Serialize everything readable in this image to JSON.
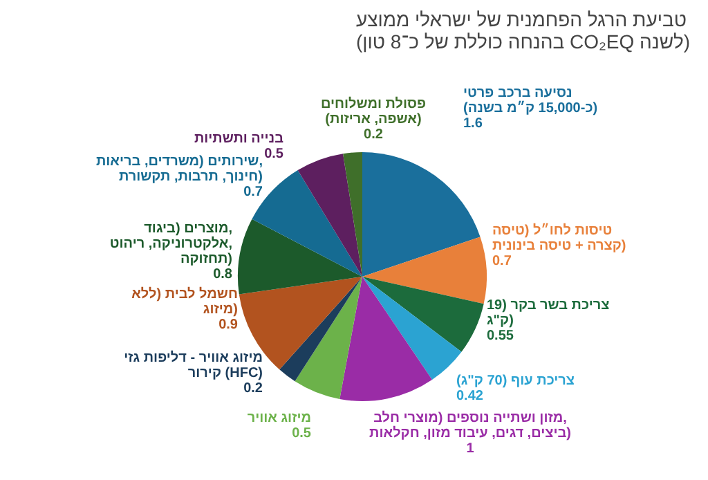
{
  "chart_data": {
    "type": "pie",
    "title": "טביעת הרגל הפחמנית של ישראלי ממוצע",
    "subtitle": "(בהנחה כוללת של כ־8 טון CO₂EQ לשנה)",
    "categories": [
      "נסיעה ברכב פרטי (כ-15,000 ק״מ בשנה)",
      "טיסות לחו״ל (טיסה קצרה + טיסה בינונית)",
      "צריכת בשר בקר (19 ק\"ג)",
      "צריכת עוף (70 ק\"ג)",
      "מזון ושתייה נוספים (מוצרי חלב, ביצים, דגים, עיבוד מזון, חקלאות)",
      "מיזוג אוויר",
      "מיזוג אוויר - דליפות גזי קירור (HFC)",
      "חשמל לבית (ללא מיזוג)",
      "מוצרים (ביגוד, אלקטרוניקה, ריהוט, תחזוקה)",
      "שירותים (משרדים, בריאות, חינוך, תרבות, תקשורת)",
      "בנייה ותשתיות",
      "פסולת ומשלוחים (אשפה, אריזות)"
    ],
    "values": [
      1.6,
      0.7,
      0.55,
      0.42,
      1,
      0.5,
      0.2,
      0.9,
      0.8,
      0.7,
      0.5,
      0.2
    ],
    "colors": [
      "#1a6f9c",
      "#e8803a",
      "#1c6b3c",
      "#2ba3d2",
      "#9a2ca6",
      "#6cb24a",
      "#1c3d5c",
      "#b2531f",
      "#1c5a2b",
      "#156b92",
      "#5d1f5f",
      "#3f6f2a"
    ],
    "data_labels": true
  }
}
